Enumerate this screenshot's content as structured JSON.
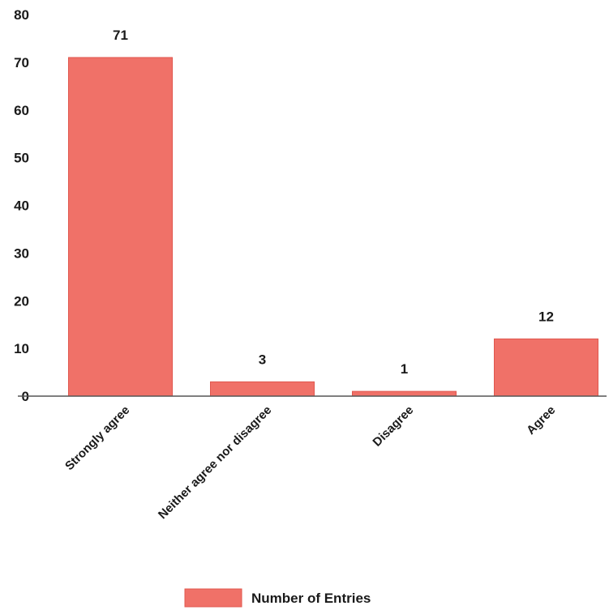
{
  "chart_data": {
    "type": "bar",
    "categories": [
      "Strongly agree",
      "Neither agree nor disagree",
      "Disagree",
      "Agree"
    ],
    "series": [
      {
        "name": "Number of Entries",
        "values": [
          71,
          3,
          1,
          12
        ]
      }
    ],
    "data_labels": [
      "71",
      "3",
      "1",
      "12"
    ],
    "ylim": [
      0,
      80
    ],
    "yticks": [
      0,
      10,
      20,
      30,
      40,
      50,
      60,
      70,
      80
    ],
    "grid": false,
    "legend_position": "bottom",
    "colors": {
      "bar": "#f07168",
      "bar_edge": "#e0574e",
      "axis": "#555555"
    }
  }
}
